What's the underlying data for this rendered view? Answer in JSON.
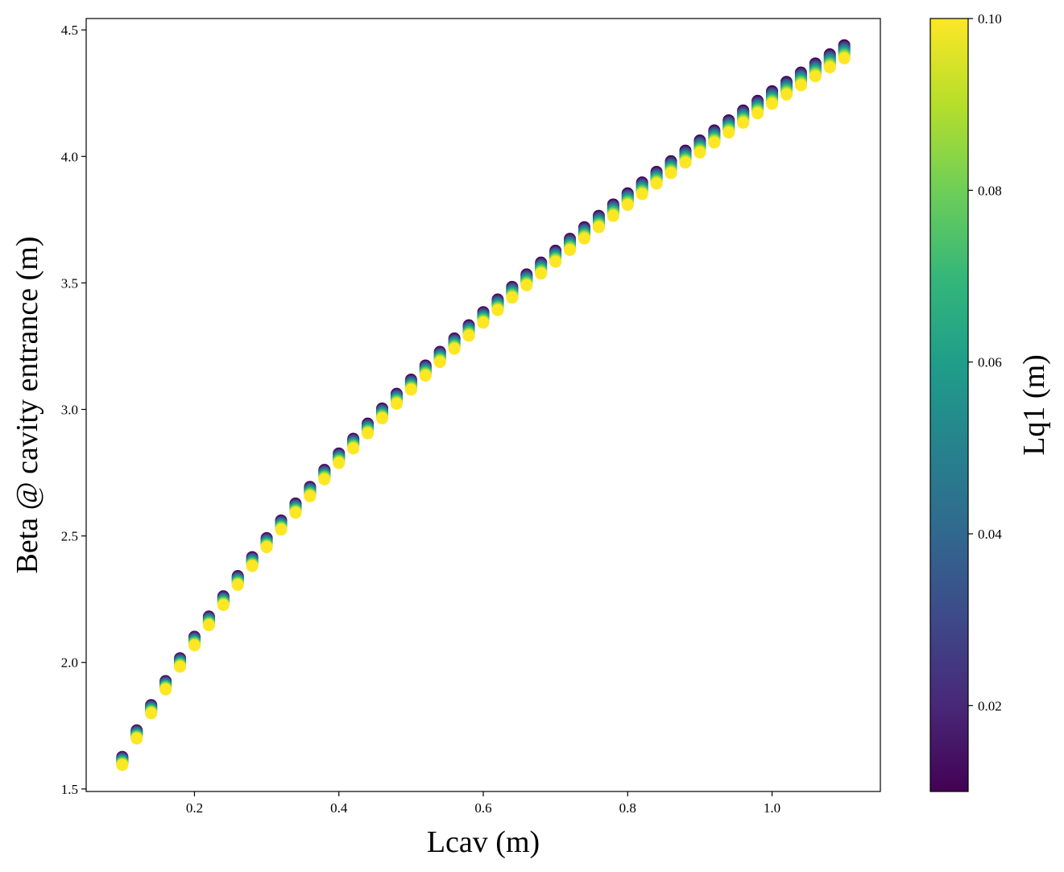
{
  "chart_data": {
    "type": "scatter",
    "title": "",
    "xlabel": "Lcav (m)",
    "ylabel": "Beta @ cavity entrance (m)",
    "xlim": [
      0.05,
      1.15
    ],
    "ylim": [
      1.49,
      4.545
    ],
    "xticks": [
      0.2,
      0.4,
      0.6,
      0.8,
      1.0
    ],
    "xtick_labels": [
      "0.2",
      "0.4",
      "0.6",
      "0.8",
      "1.0"
    ],
    "yticks": [
      1.5,
      2.0,
      2.5,
      3.0,
      3.5,
      4.0,
      4.5
    ],
    "ytick_labels": [
      "1.5",
      "2.0",
      "2.5",
      "3.0",
      "3.5",
      "4.0",
      "4.5"
    ],
    "grid": false,
    "legend": "none",
    "colorbar": {
      "label": "Lq1 (m)",
      "colormap": "viridis",
      "min": 0.01,
      "max": 0.1,
      "ticks": [
        0.02,
        0.04,
        0.06,
        0.08,
        0.1
      ],
      "tick_labels": [
        "0.02",
        "0.04",
        "0.06",
        "0.08",
        "0.10"
      ]
    },
    "x": [
      0.1,
      0.12,
      0.14,
      0.16,
      0.18,
      0.2,
      0.22,
      0.24,
      0.26,
      0.28,
      0.3,
      0.32,
      0.34,
      0.36,
      0.38,
      0.4,
      0.42,
      0.44,
      0.46,
      0.48,
      0.5,
      0.52,
      0.54,
      0.56,
      0.58,
      0.6,
      0.62,
      0.64,
      0.66,
      0.68,
      0.7,
      0.72,
      0.74,
      0.76,
      0.78,
      0.8,
      0.82,
      0.84,
      0.86,
      0.88,
      0.9,
      0.92,
      0.94,
      0.96,
      0.98,
      1.0,
      1.02,
      1.04,
      1.06,
      1.08,
      1.1
    ],
    "y": [
      1.63,
      1.735,
      1.835,
      1.93,
      2.02,
      2.105,
      2.185,
      2.265,
      2.345,
      2.42,
      2.495,
      2.565,
      2.632,
      2.698,
      2.765,
      2.83,
      2.888,
      2.948,
      3.008,
      3.066,
      3.122,
      3.178,
      3.232,
      3.285,
      3.337,
      3.389,
      3.439,
      3.489,
      3.538,
      3.585,
      3.632,
      3.679,
      3.725,
      3.77,
      3.815,
      3.859,
      3.902,
      3.944,
      3.986,
      4.028,
      4.068,
      4.108,
      4.148,
      4.187,
      4.225,
      4.263,
      4.3,
      4.337,
      4.373,
      4.409,
      4.445
    ],
    "lq1_values": [
      0.01,
      0.02,
      0.03,
      0.04,
      0.05,
      0.06,
      0.07,
      0.08,
      0.09,
      0.1
    ],
    "lq1_offset_per_m": -0.55,
    "colors": {
      "viridis": [
        "#440154",
        "#482878",
        "#3e4989",
        "#31688e",
        "#26828e",
        "#1f9e89",
        "#35b779",
        "#6ece58",
        "#b5de2b",
        "#fde725"
      ]
    }
  }
}
